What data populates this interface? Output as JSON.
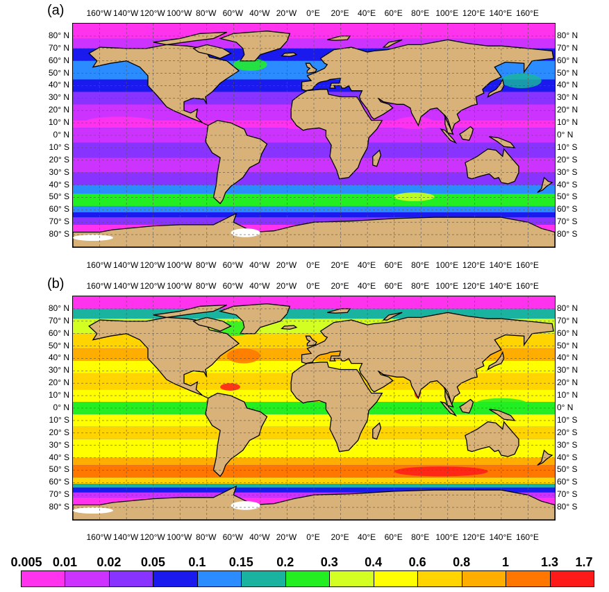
{
  "panels": [
    {
      "label": "(a)",
      "variant": "a"
    },
    {
      "label": "(b)",
      "variant": "b"
    }
  ],
  "lon_labels": [
    "160°W",
    "140°W",
    "120°W",
    "100°W",
    "80°W",
    "60°W",
    "40°W",
    "20°W",
    "0°E",
    "20°E",
    "40°E",
    "60°E",
    "80°E",
    "100°E",
    "120°E",
    "140°E",
    "160°E"
  ],
  "lat_labels": [
    "80° N",
    "70° N",
    "60° N",
    "50° N",
    "40° N",
    "30° N",
    "20° N",
    "10° N",
    "0° N",
    "10° S",
    "20° S",
    "30° S",
    "40° S",
    "50° S",
    "60° S",
    "70° S",
    "80° S"
  ],
  "colorbar": {
    "ticks": [
      "0.005",
      "0.01",
      "0.02",
      "0.05",
      "0.1",
      "0.15",
      "0.2",
      "0.3",
      "0.4",
      "0.6",
      "0.8",
      "1",
      "1.3",
      "1.7"
    ],
    "colors": [
      "#ff33ee",
      "#cc33ff",
      "#8833ff",
      "#1a1aee",
      "#2b8cff",
      "#1ab3a0",
      "#22ee22",
      "#d4ff22",
      "#ffff00",
      "#ffd400",
      "#ffae00",
      "#ff7700",
      "#ff1a1a"
    ]
  },
  "colors": {
    "land": "#d9b27a",
    "coast": "#000000",
    "ice": "#ffffff",
    "grid": "#555555"
  }
}
